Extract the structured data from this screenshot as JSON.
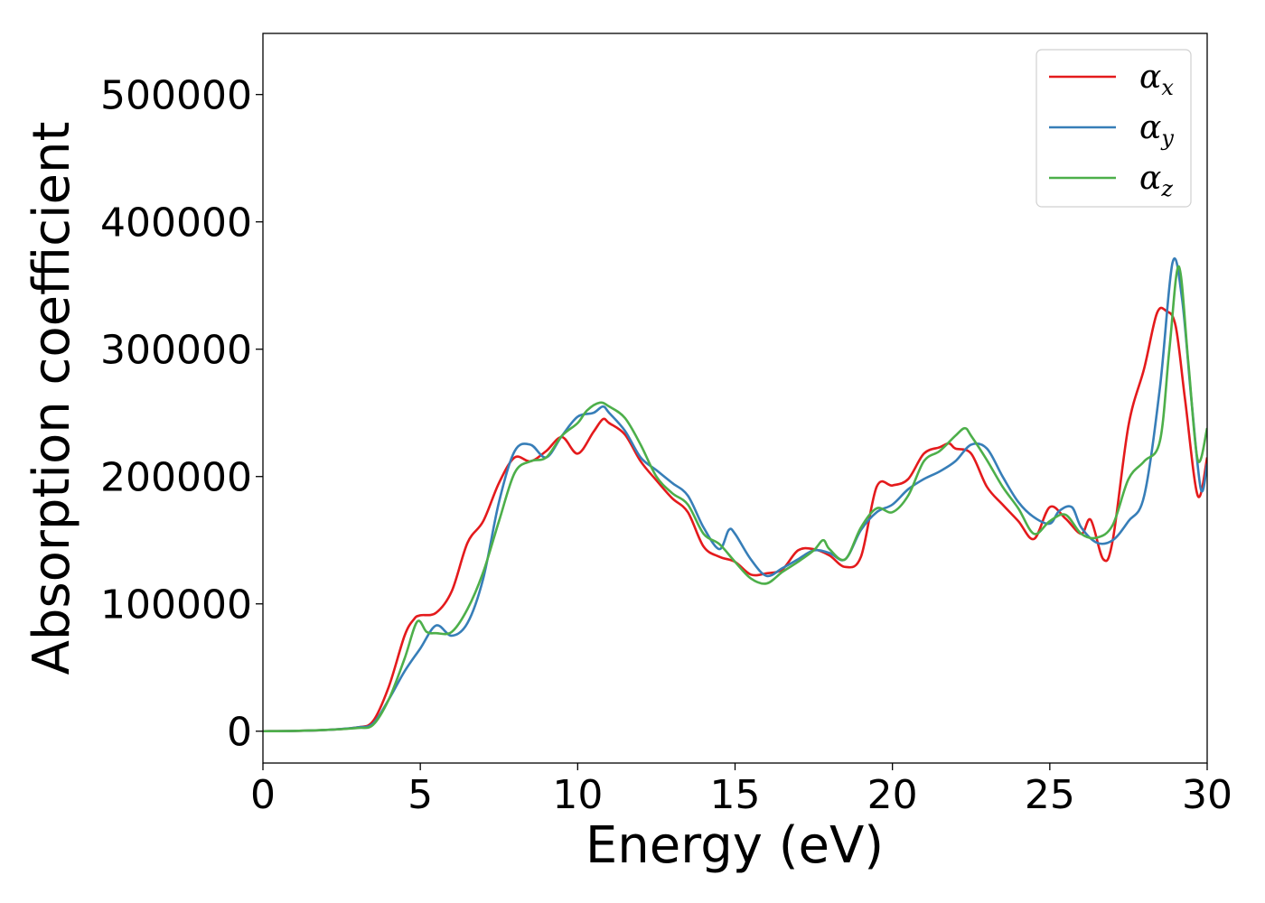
{
  "chart_data": {
    "type": "line",
    "xlabel": "Energy (eV)",
    "ylabel": "Absorption coefficient",
    "xlim": [
      0,
      30
    ],
    "ylim": [
      -25000,
      548000
    ],
    "x_ticks": [
      0,
      5,
      10,
      15,
      20,
      25,
      30
    ],
    "y_ticks": [
      0,
      100000,
      200000,
      300000,
      400000,
      500000
    ],
    "x_tick_labels": [
      "0",
      "5",
      "10",
      "15",
      "20",
      "25",
      "30"
    ],
    "y_tick_labels": [
      "0",
      "100000",
      "200000",
      "300000",
      "400000",
      "500000"
    ],
    "grid": false,
    "legend_position": "top-right",
    "series": [
      {
        "name": "α_x",
        "legend_base": "α",
        "legend_sub": "x",
        "color": "#e41a1c",
        "x": [
          0,
          1,
          2,
          3,
          3.5,
          4,
          4.5,
          4.8,
          5,
          5.5,
          6,
          6.5,
          7,
          7.5,
          8,
          8.5,
          9,
          9.5,
          10,
          10.5,
          10.8,
          11,
          11.5,
          12,
          12.5,
          13,
          13.5,
          14,
          14.5,
          15,
          15.5,
          16,
          16.5,
          17,
          17.5,
          18,
          18.5,
          19,
          19.5,
          20,
          20.5,
          21,
          21.5,
          21.8,
          22,
          22.5,
          23,
          23.5,
          24,
          24.5,
          25,
          25.5,
          26,
          26.3,
          26.7,
          27,
          27.5,
          28,
          28.4,
          28.7,
          29,
          29.3,
          29.7,
          30
        ],
        "y": [
          0,
          200,
          1000,
          3000,
          8000,
          35000,
          75000,
          88000,
          91000,
          93000,
          110000,
          148000,
          165000,
          195000,
          215000,
          212000,
          220000,
          231000,
          218000,
          235000,
          245000,
          242000,
          233000,
          212000,
          197000,
          183000,
          172000,
          145000,
          137000,
          133000,
          123000,
          124000,
          127000,
          142000,
          143000,
          138000,
          129000,
          137000,
          192000,
          193000,
          198000,
          218000,
          223000,
          226000,
          222000,
          218000,
          192000,
          178000,
          165000,
          151000,
          176000,
          167000,
          155000,
          166000,
          135000,
          150000,
          240000,
          285000,
          328000,
          330000,
          318000,
          260000,
          185000,
          215000
        ]
      },
      {
        "name": "α_y",
        "legend_base": "α",
        "legend_sub": "y",
        "color": "#377eb8",
        "x": [
          0,
          1,
          2,
          3,
          3.5,
          4,
          4.5,
          5,
          5.5,
          6,
          6.5,
          7,
          7.5,
          8,
          8.5,
          9,
          9.5,
          10,
          10.5,
          10.8,
          11,
          11.5,
          12,
          12.5,
          13,
          13.5,
          14,
          14.5,
          14.8,
          15,
          15.5,
          16,
          16.5,
          17,
          17.5,
          18,
          18.5,
          19,
          19.5,
          20,
          20.5,
          21,
          21.5,
          22,
          22.5,
          23,
          23.5,
          24,
          24.5,
          25,
          25.3,
          25.7,
          26,
          26.5,
          27,
          27.5,
          28,
          28.5,
          28.9,
          29.2,
          29.5,
          29.8,
          30
        ],
        "y": [
          0,
          200,
          1000,
          3000,
          6000,
          25000,
          47000,
          65000,
          83000,
          75000,
          85000,
          120000,
          180000,
          220000,
          225000,
          215000,
          232000,
          247000,
          250000,
          255000,
          250000,
          236000,
          215000,
          205000,
          195000,
          185000,
          160000,
          143000,
          158000,
          155000,
          135000,
          122000,
          128000,
          135000,
          142000,
          140000,
          135000,
          158000,
          172000,
          178000,
          190000,
          198000,
          204000,
          212000,
          225000,
          222000,
          200000,
          180000,
          168000,
          163000,
          173000,
          176000,
          160000,
          148000,
          150000,
          165000,
          185000,
          270000,
          368000,
          340000,
          260000,
          190000,
          210000
        ]
      },
      {
        "name": "α_z",
        "legend_base": "α",
        "legend_sub": "z",
        "color": "#4daf4a",
        "x": [
          0,
          1,
          2,
          3,
          3.5,
          4,
          4.5,
          4.9,
          5.2,
          5.5,
          6,
          6.5,
          7,
          7.5,
          8,
          8.5,
          9,
          9.5,
          10,
          10.3,
          10.7,
          11,
          11.5,
          12,
          12.5,
          13,
          13.5,
          14,
          14.5,
          15,
          15.5,
          16,
          16.5,
          17,
          17.5,
          17.8,
          18,
          18.5,
          19,
          19.5,
          20,
          20.5,
          21,
          21.5,
          22,
          22.3,
          22.5,
          23,
          23.5,
          24,
          24.5,
          25,
          25.5,
          26,
          26.5,
          27,
          27.5,
          28,
          28.5,
          28.8,
          29.1,
          29.4,
          29.7,
          30
        ],
        "y": [
          0,
          200,
          1000,
          2500,
          5000,
          25000,
          57000,
          86000,
          78000,
          77000,
          78000,
          96000,
          125000,
          165000,
          203000,
          212000,
          215000,
          232000,
          242000,
          252000,
          258000,
          255000,
          246000,
          225000,
          200000,
          187000,
          178000,
          155000,
          147000,
          133000,
          120000,
          116000,
          125000,
          133000,
          142000,
          150000,
          143000,
          135000,
          160000,
          175000,
          172000,
          185000,
          212000,
          220000,
          232000,
          238000,
          232000,
          213000,
          192000,
          175000,
          155000,
          165000,
          170000,
          155000,
          152000,
          162000,
          198000,
          212000,
          228000,
          300000,
          365000,
          290000,
          213000,
          238000
        ]
      }
    ]
  }
}
